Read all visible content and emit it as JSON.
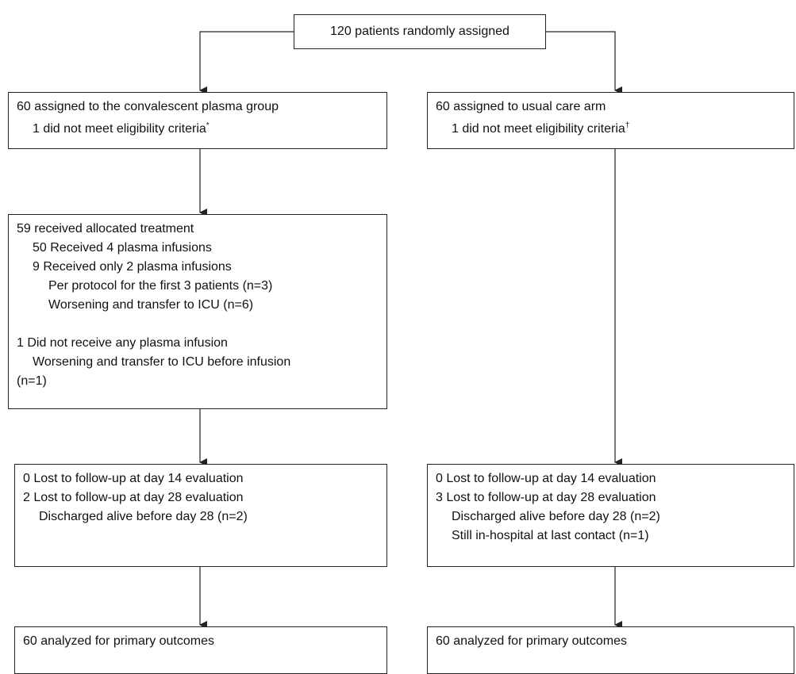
{
  "nodes": [
    {
      "label": "120 patients randomly assigned"
    },
    {
      "lines": [
        "60 assigned to the convalescent plasma group",
        "1 did not meet eligibility criteria"
      ],
      "note": "*"
    },
    {
      "lines": [
        "60 assigned to usual care arm",
        "1 did not meet eligibility criteria"
      ],
      "note": "†"
    },
    {
      "lines": [
        "59 received allocated treatment",
        "50 Received 4 plasma infusions",
        "9 Received only 2 plasma infusions",
        "Per protocol for the first 3 patients (n=3)",
        "Worsening and transfer to ICU (n=6)",
        "1 Did not receive any plasma infusion",
        "Worsening and transfer to ICU before infusion",
        "(n=1)"
      ]
    },
    {
      "lines": [
        "0 Lost to follow-up at day 14 evaluation",
        "2 Lost to follow-up at day 28 evaluation",
        "Discharged alive before day 28 (n=2)"
      ]
    },
    {
      "lines": [
        "0 Lost to follow-up at day 14 evaluation",
        "3 Lost to follow-up at day 28 evaluation",
        "Discharged alive before day 28 (n=2)",
        "Still in-hospital at last contact (n=1)"
      ]
    },
    {
      "label": "60 analyzed for primary outcomes"
    },
    {
      "label": "60 analyzed for primary outcomes"
    }
  ]
}
